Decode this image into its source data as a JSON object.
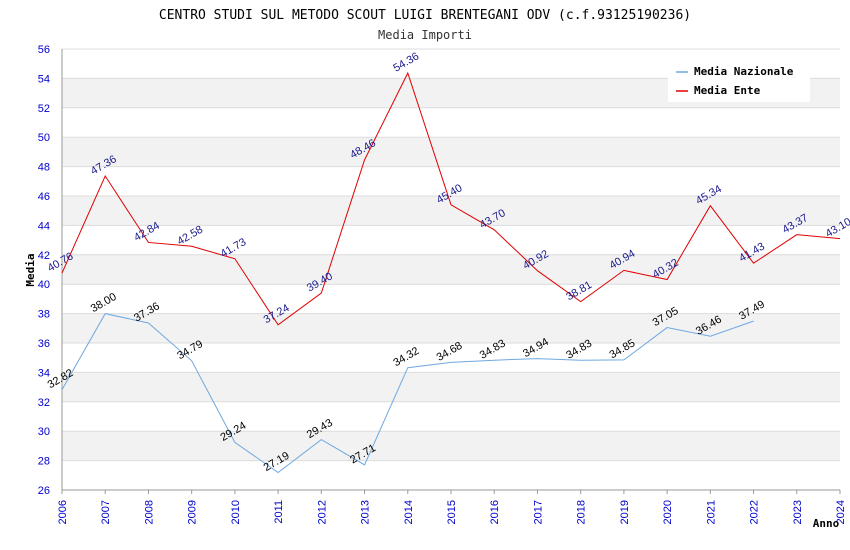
{
  "chart_data": {
    "type": "line",
    "title": "CENTRO STUDI SUL METODO SCOUT LUIGI BRENTEGANI ODV (c.f.93125190236)",
    "subtitle": "Media Importi",
    "xlabel": "Anno",
    "ylabel": "Media",
    "ylim": [
      26,
      56
    ],
    "yticks": [
      26,
      28,
      30,
      32,
      34,
      36,
      38,
      40,
      42,
      44,
      46,
      48,
      50,
      52,
      54,
      56
    ],
    "x": [
      "2006",
      "2007",
      "2008",
      "2009",
      "2010",
      "2011",
      "2012",
      "2013",
      "2014",
      "2015",
      "2016",
      "2017",
      "2018",
      "2019",
      "2020",
      "2021",
      "2022",
      "2023",
      "2024"
    ],
    "grid": true,
    "legend_position": "top-right",
    "series": [
      {
        "name": "Media Nazionale",
        "color": "#6fa8e0",
        "label_color": "#000000",
        "values": [
          32.82,
          38.0,
          37.36,
          34.79,
          29.24,
          27.19,
          29.43,
          27.71,
          34.32,
          34.68,
          34.83,
          34.94,
          34.83,
          34.85,
          37.05,
          36.46,
          37.49,
          null,
          null
        ],
        "labels": [
          "32.82",
          "38.00",
          "37.36",
          "34.79",
          "29.24",
          "27.19",
          "29.43",
          "27.71",
          "34.32",
          "34.68",
          "34.83",
          "34.94",
          "34.83",
          "34.85",
          "37.05",
          "36.46",
          "37.49",
          "",
          ""
        ]
      },
      {
        "name": "Media Ente",
        "color": "#e00000",
        "label_color": "#1a1a8c",
        "values": [
          40.76,
          47.36,
          42.84,
          42.58,
          41.73,
          37.24,
          39.4,
          48.46,
          54.36,
          45.4,
          43.7,
          40.92,
          38.81,
          40.94,
          40.32,
          45.34,
          41.43,
          43.37,
          43.1
        ],
        "labels": [
          "40.76",
          "47.36",
          "42.84",
          "42.58",
          "41.73",
          "37.24",
          "39.40",
          "48.46",
          "54.36",
          "45.40",
          "43.70",
          "40.92",
          "38.81",
          "40.94",
          "40.32",
          "45.34",
          "41.43",
          "43.37",
          "43.10"
        ]
      }
    ]
  }
}
